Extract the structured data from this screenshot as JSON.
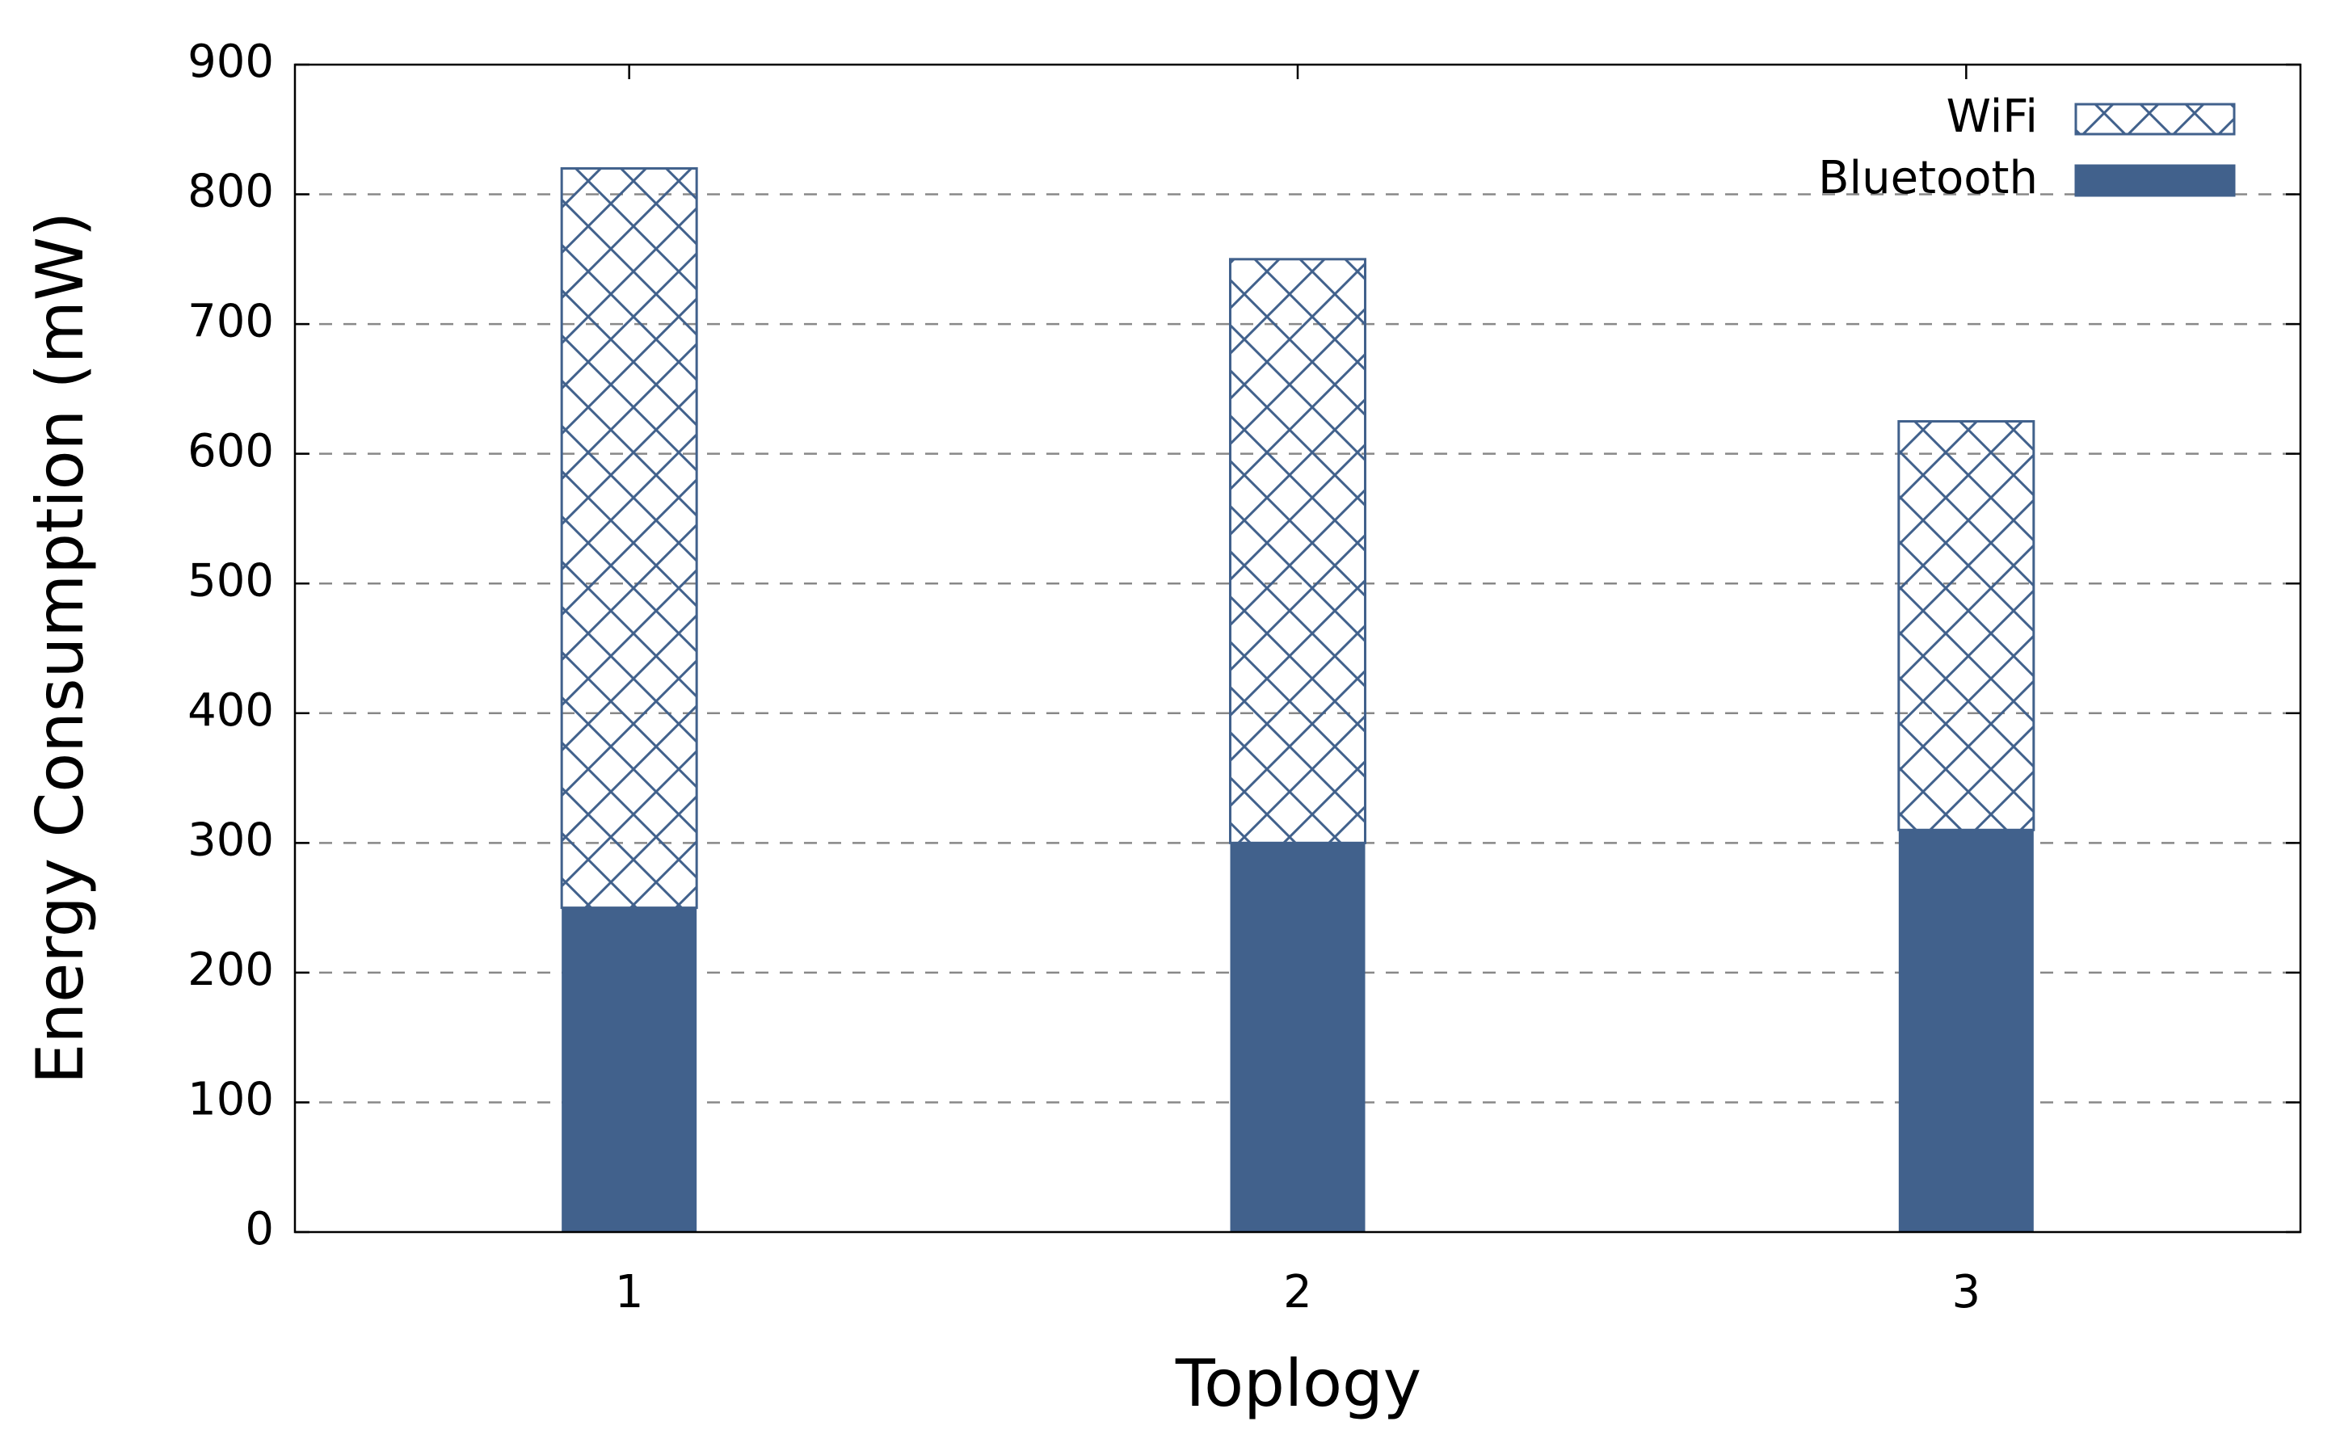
{
  "chart_data": {
    "type": "stacked_bar",
    "x_label": "Toplogy",
    "y_label": "Energy Consumption (mW)",
    "categories": [
      "1",
      "2",
      "3"
    ],
    "series": [
      {
        "name": "Bluetooth",
        "color": "#41618c",
        "pattern": "solid",
        "values": [
          250,
          300,
          310
        ]
      },
      {
        "name": "WiFi",
        "color": "#41618c",
        "pattern": "crosshatch",
        "values": [
          570,
          450,
          315
        ]
      }
    ],
    "ylim": [
      0,
      900
    ],
    "yticks": [
      0,
      100,
      200,
      300,
      400,
      500,
      600,
      700,
      800,
      900
    ],
    "grid": true,
    "legend": "top-right"
  }
}
